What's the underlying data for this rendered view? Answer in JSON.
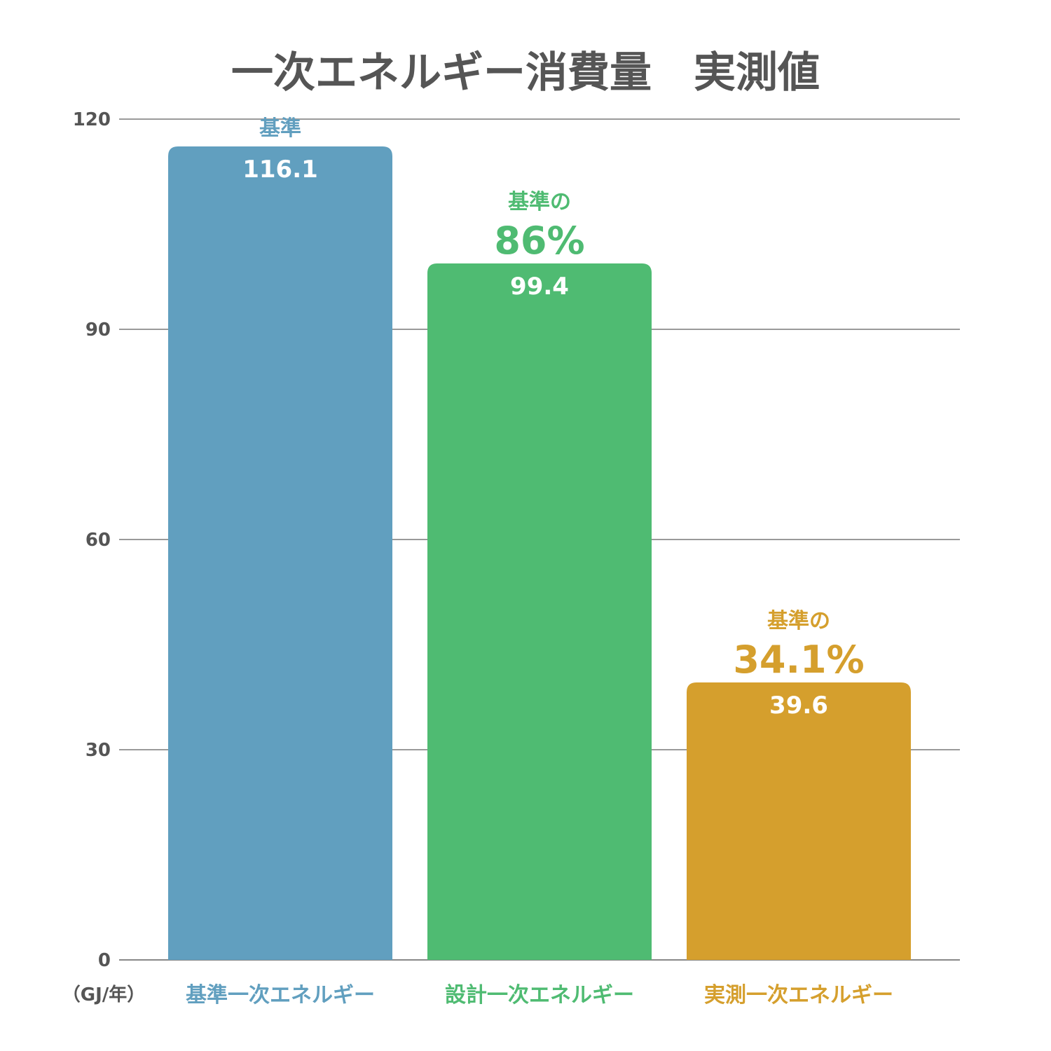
{
  "chart_data": {
    "type": "bar",
    "title": "一次エネルギー消費量　実測値",
    "unit_label": "（GJ/年）",
    "ylim": [
      0,
      120
    ],
    "yticks": [
      0,
      30,
      60,
      90,
      120
    ],
    "grid": true,
    "categories": [
      "基準一次エネルギー",
      "設計一次エネルギー",
      "実測一次エネルギー"
    ],
    "values": [
      116.1,
      99.4,
      39.6
    ],
    "value_labels": [
      "116.1",
      "99.4",
      "39.6"
    ],
    "annotations": [
      {
        "note": "基準",
        "percent": ""
      },
      {
        "note": "基準の",
        "percent": "86%"
      },
      {
        "note": "基準の",
        "percent": "34.1%"
      }
    ],
    "colors": [
      "#619fbf",
      "#4fbb72",
      "#d59f2d"
    ]
  }
}
